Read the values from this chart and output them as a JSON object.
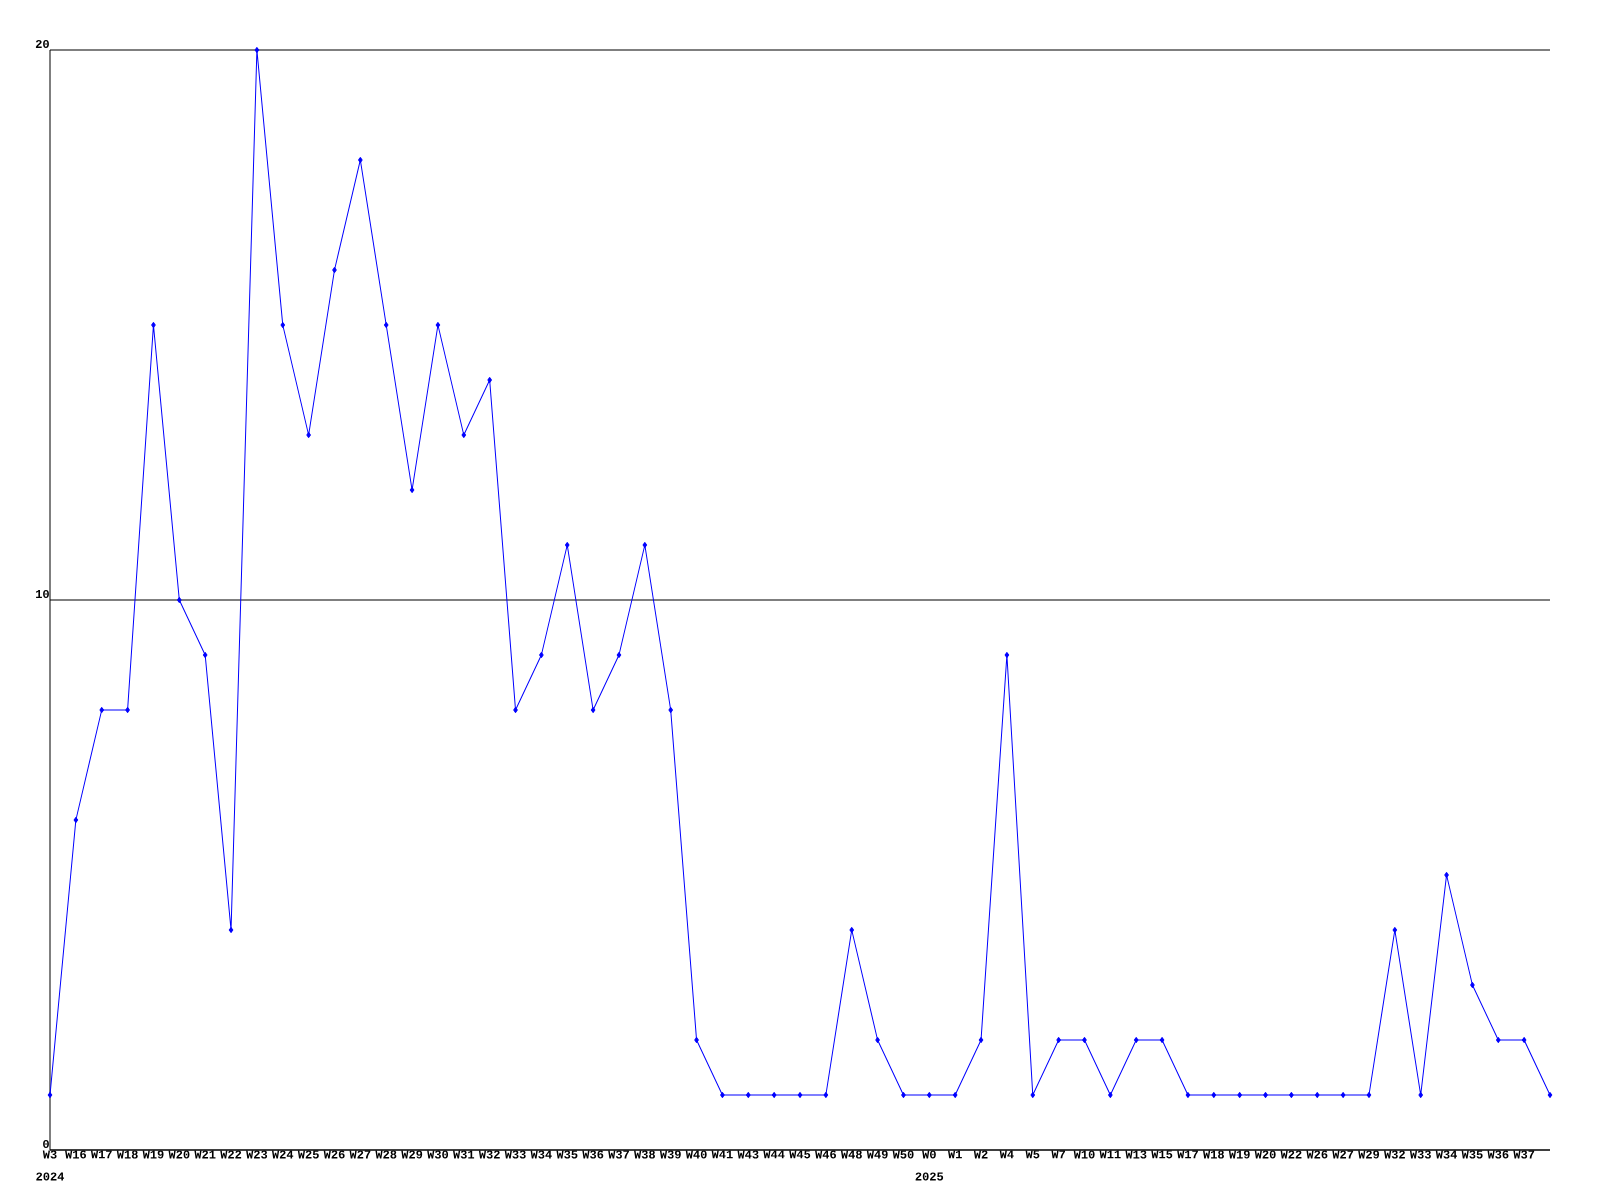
{
  "chart_data": {
    "type": "line",
    "categories": [
      "W3",
      "W16",
      "W17",
      "W18",
      "W19",
      "W20",
      "W21",
      "W22",
      "W23",
      "W24",
      "W25",
      "W26",
      "W27",
      "W28",
      "W29",
      "W30",
      "W31",
      "W32",
      "W33",
      "W34",
      "W35",
      "W36",
      "W37",
      "W38",
      "W39",
      "W40",
      "W41",
      "W43",
      "W44",
      "W45",
      "W46",
      "W48",
      "W49",
      "W50",
      "W0",
      "W1",
      "W2",
      "W4",
      "W5",
      "W7",
      "W10",
      "W11",
      "W13",
      "W15",
      "W17",
      "W18",
      "W19",
      "W20",
      "W22",
      "W26",
      "W27",
      "W29",
      "W32",
      "W33",
      "W34",
      "W35",
      "W36",
      "W37",
      null
    ],
    "values": [
      1,
      6,
      8,
      8,
      15,
      10,
      9,
      4,
      20,
      15,
      13,
      16,
      18,
      15,
      12,
      15,
      13,
      14,
      8,
      9,
      11,
      8,
      9,
      11,
      8,
      2,
      1,
      1,
      1,
      1,
      1,
      4,
      2,
      1,
      1,
      1,
      2,
      9,
      1,
      2,
      2,
      1,
      2,
      2,
      1,
      1,
      1,
      1,
      1,
      1,
      1,
      1,
      4,
      1,
      5,
      3,
      2,
      2,
      1
    ],
    "color": "#0000ff",
    "marker": "diamond",
    "grid": "y",
    "ylim": [
      0,
      20
    ],
    "yticks": [
      0,
      10,
      20
    ],
    "annotations": [
      "2024",
      "2025"
    ]
  }
}
